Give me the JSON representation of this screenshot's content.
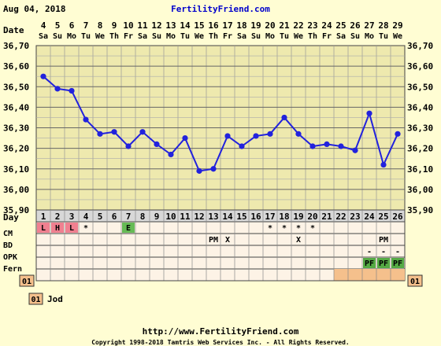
{
  "header": {
    "date": "Aug 04, 2018",
    "site": "FertilityFriend.com"
  },
  "labels": {
    "date_row": "Date",
    "day_row": "Day",
    "cm_row": "CM",
    "bd_row": "BD",
    "opk_row": "OPK",
    "fern_row": "Fern",
    "cycle_badge": "01"
  },
  "legend": {
    "badge": "01",
    "label": "Jod"
  },
  "footer": {
    "url": "http://www.FertilityFriend.com",
    "copyright": "Copyright 1998-2018 Tamtris Web Services Inc. - All Rights Reserved."
  },
  "colors": {
    "background": "#fffdd3",
    "grid_fill": "#eee9ae",
    "line": "#2222dd",
    "menses": "#f08090",
    "egg_white": "#66bb55",
    "peak_fern": "#55aa44",
    "cycle_shade": "#f5c08c",
    "site_link": "#0000cc"
  },
  "chart_data": {
    "type": "line",
    "ylabel": "",
    "ylim": [
      35.9,
      36.7
    ],
    "yticks": [
      "35,90",
      "36,00",
      "36,10",
      "36,20",
      "36,30",
      "36,40",
      "36,50",
      "36,60",
      "36,70"
    ],
    "dates": [
      "4",
      "5",
      "6",
      "7",
      "8",
      "9",
      "10",
      "11",
      "12",
      "13",
      "14",
      "15",
      "16",
      "17",
      "18",
      "19",
      "20",
      "21",
      "22",
      "23",
      "24",
      "25",
      "26",
      "27",
      "28",
      "29"
    ],
    "weekdays": [
      "Sa",
      "Su",
      "Mo",
      "Tu",
      "We",
      "Th",
      "Fr",
      "Sa",
      "Su",
      "Mo",
      "Tu",
      "We",
      "Th",
      "Fr",
      "Sa",
      "Su",
      "Mo",
      "Tu",
      "We",
      "Th",
      "Fr",
      "Sa",
      "Su",
      "Mo",
      "Tu",
      "We"
    ],
    "days": [
      "1",
      "2",
      "3",
      "4",
      "5",
      "6",
      "7",
      "8",
      "9",
      "10",
      "11",
      "12",
      "13",
      "14",
      "15",
      "16",
      "17",
      "18",
      "19",
      "20",
      "21",
      "22",
      "23",
      "24",
      "25",
      "26"
    ],
    "series": [
      {
        "values": [
          36.55,
          36.49,
          36.48,
          36.34,
          36.27,
          36.28,
          36.21,
          36.28,
          36.22,
          36.17,
          36.25,
          36.09,
          36.1,
          36.26,
          36.21,
          36.26,
          36.27,
          36.35,
          36.27,
          36.21,
          36.22,
          36.21,
          36.19,
          36.37,
          36.12,
          36.27
        ]
      }
    ],
    "cm": [
      "L",
      "H",
      "L",
      "*",
      "",
      "",
      "E",
      "",
      "",
      "",
      "",
      "",
      "",
      "",
      "",
      "",
      "*",
      "*",
      "*",
      "*",
      "",
      "",
      "",
      "",
      "",
      ""
    ],
    "bd": [
      "",
      "",
      "",
      "",
      "",
      "",
      "",
      "",
      "",
      "",
      "",
      "",
      "PM",
      "X",
      "",
      "",
      "",
      "",
      "X",
      "",
      "",
      "",
      "",
      "",
      "PM",
      ""
    ],
    "opk": [
      "",
      "",
      "",
      "",
      "",
      "",
      "",
      "",
      "",
      "",
      "",
      "",
      "",
      "",
      "",
      "",
      "",
      "",
      "",
      "",
      "",
      "",
      "",
      "-",
      "-",
      "-"
    ],
    "fern": [
      "",
      "",
      "",
      "",
      "",
      "",
      "",
      "",
      "",
      "",
      "",
      "",
      "",
      "",
      "",
      "",
      "",
      "",
      "",
      "",
      "",
      "",
      "",
      "PF",
      "PF",
      "PF"
    ],
    "cycle_shaded_days": [
      22,
      23,
      24,
      25,
      26
    ],
    "grid": true
  }
}
